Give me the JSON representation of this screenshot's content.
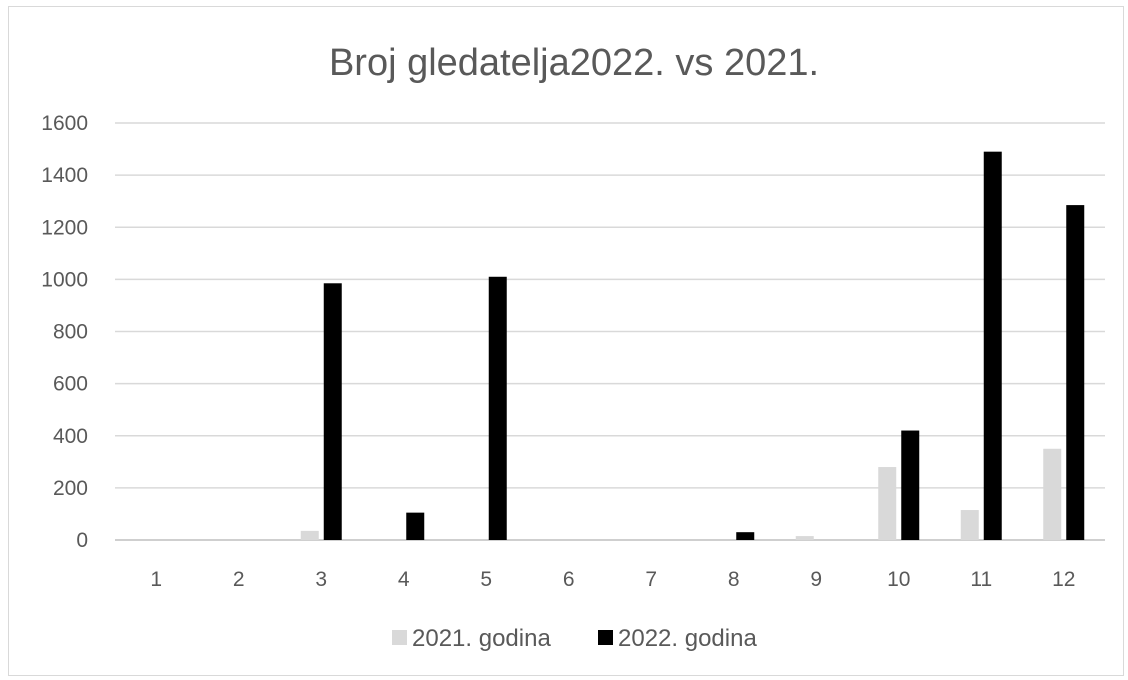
{
  "chart_data": {
    "type": "bar",
    "title": "Broj gledatelja2022. vs 2021.",
    "xlabel": "",
    "ylabel": "",
    "categories": [
      "1",
      "2",
      "3",
      "4",
      "5",
      "6",
      "7",
      "8",
      "9",
      "10",
      "11",
      "12"
    ],
    "series": [
      {
        "name": "2021. godina",
        "color": "#d9d9d9",
        "values": [
          0,
          0,
          35,
          0,
          0,
          0,
          0,
          0,
          15,
          280,
          115,
          350
        ]
      },
      {
        "name": "2022. godina",
        "color": "#000000",
        "values": [
          0,
          0,
          985,
          105,
          1010,
          0,
          0,
          30,
          0,
          420,
          1490,
          1285
        ]
      }
    ],
    "ylim": [
      0,
      1600
    ],
    "yticks": [
      "0",
      "200",
      "400",
      "600",
      "800",
      "1000",
      "1200",
      "1400",
      "1600"
    ],
    "grid": true,
    "legend_position": "bottom",
    "gridline_color": "#d9d9d9",
    "axis_color": "#bfbfbf",
    "text_color": "#595959"
  }
}
